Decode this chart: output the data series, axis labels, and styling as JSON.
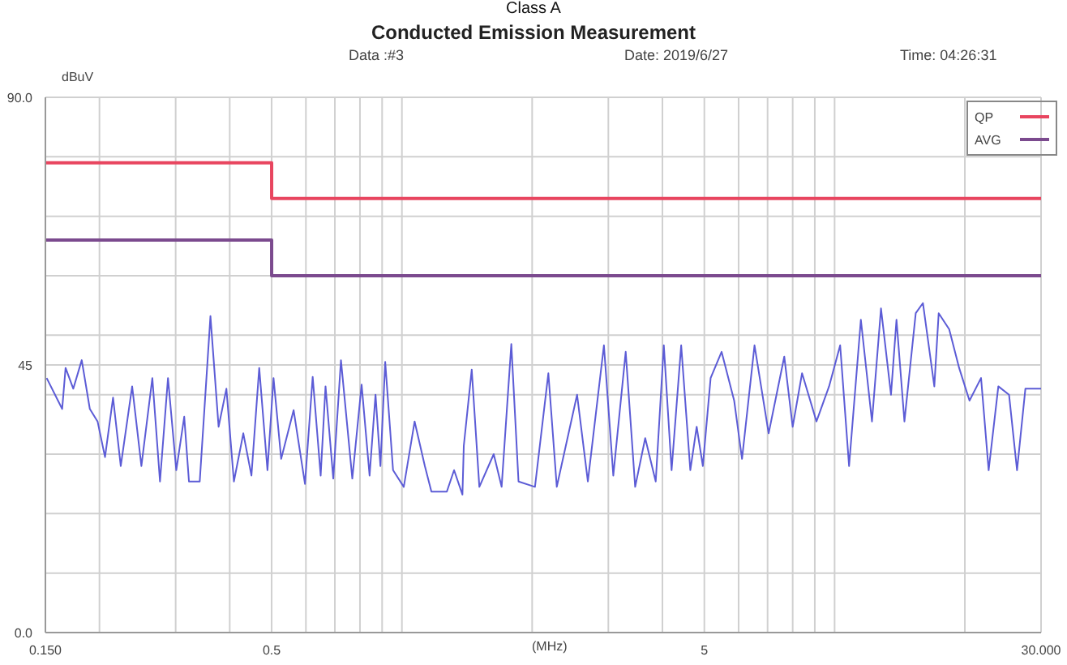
{
  "chart_data": {
    "type": "line",
    "title": "Conducted Emission Measurement",
    "subtitle": "Class A",
    "xlabel": "(MHz)",
    "ylabel": "dBuV",
    "annotations": [
      "Data :#3",
      "Date: 2019/6/27",
      "Time: 04:26:31"
    ],
    "log": "x",
    "grid": true,
    "legend": "top right",
    "marker": "none",
    "line_style": "solid",
    "xlim": [
      0.15,
      30
    ],
    "xticks": [
      {
        "value": 0.15,
        "label": "0.150"
      },
      {
        "value": 0.2,
        "label": null
      },
      {
        "value": 0.3,
        "label": null
      },
      {
        "value": 0.4,
        "label": null
      },
      0.5,
      {
        "value": 0.6,
        "label": null
      },
      {
        "value": 0.7,
        "label": null
      },
      {
        "value": 0.8,
        "label": null
      },
      {
        "value": 0.9,
        "label": null
      },
      {
        "value": 1,
        "label": null
      },
      {
        "value": 2,
        "label": null
      },
      {
        "value": 3,
        "label": null
      },
      {
        "value": 4,
        "label": null
      },
      5,
      {
        "value": 6,
        "label": null
      },
      {
        "value": 7,
        "label": null
      },
      {
        "value": 8,
        "label": null
      },
      {
        "value": 9,
        "label": null
      },
      {
        "value": 10,
        "label": null
      },
      {
        "value": 20,
        "label": null
      },
      {
        "value": 30,
        "label": "30.000"
      }
    ],
    "ylim": [
      0,
      90
    ],
    "yticks": [
      {
        "value": 0,
        "label": "0.0"
      },
      {
        "value": 10,
        "label": null
      },
      {
        "value": 20,
        "label": null
      },
      {
        "value": 30,
        "label": null
      },
      {
        "value": 40,
        "label": null
      },
      45,
      {
        "value": 50,
        "label": null
      },
      {
        "value": 60,
        "label": null
      },
      {
        "value": 70,
        "label": null
      },
      {
        "value": 80,
        "label": null
      },
      {
        "value": 90,
        "label": "90.0"
      }
    ],
    "series": [
      {
        "name": "QP",
        "type": "step",
        "color": "#e8455f",
        "x": [
          0.15,
          0.5,
          30
        ],
        "values": [
          79,
          73,
          73
        ]
      },
      {
        "name": "AVG",
        "type": "step",
        "color": "#7b4a8e",
        "x": [
          0.15,
          0.5,
          30
        ],
        "values": [
          66,
          60,
          60
        ]
      },
      {
        "color": "#5c5cd6",
        "x": [
          0.151,
          0.164,
          0.167,
          0.174,
          0.182,
          0.19,
          0.198,
          0.206,
          0.215,
          0.224,
          0.238,
          0.25,
          0.265,
          0.276,
          0.288,
          0.301,
          0.314,
          0.322,
          0.341,
          0.361,
          0.377,
          0.393,
          0.409,
          0.43,
          0.449,
          0.468,
          0.489,
          0.505,
          0.526,
          0.562,
          0.597,
          0.622,
          0.649,
          0.666,
          0.694,
          0.723,
          0.768,
          0.807,
          0.842,
          0.869,
          0.892,
          0.915,
          0.954,
          1.01,
          1.07,
          1.13,
          1.17,
          1.27,
          1.32,
          1.38,
          1.39,
          1.45,
          1.51,
          1.63,
          1.7,
          1.79,
          1.86,
          2.03,
          2.18,
          2.28,
          2.54,
          2.69,
          2.93,
          3.08,
          3.29,
          3.46,
          3.65,
          3.86,
          4.03,
          4.2,
          4.42,
          4.64,
          4.8,
          4.96,
          5.17,
          5.48,
          5.86,
          6.11,
          6.53,
          7.04,
          7.65,
          8.0,
          8.41,
          9.08,
          9.71,
          10.3,
          10.8,
          11.5,
          12.2,
          12.8,
          13.5,
          13.9,
          14.5,
          15.4,
          16.0,
          17.0,
          17.4,
          18.4,
          19.4,
          20.5,
          21.8,
          22.7,
          23.9,
          25.3,
          26.4,
          27.6,
          30
        ],
        "values": [
          42.8,
          37.6,
          44.5,
          41,
          45.8,
          37.6,
          35.5,
          29.5,
          39.5,
          28,
          41.4,
          28,
          42.8,
          25.4,
          42.8,
          27.3,
          36.3,
          25.4,
          25.4,
          53.2,
          34.6,
          41,
          25.4,
          33.5,
          26.4,
          44.5,
          27.3,
          42.8,
          29.2,
          37.4,
          25,
          43,
          26.4,
          41.4,
          25.9,
          45.8,
          25.9,
          41.7,
          26.4,
          40,
          28,
          45.5,
          27.3,
          24.5,
          35.5,
          28,
          23.7,
          23.7,
          27.3,
          23.2,
          31.4,
          44.2,
          24.5,
          30,
          24.5,
          48.5,
          25.4,
          24.5,
          43.6,
          24.5,
          40,
          25.4,
          48.3,
          26.4,
          47.2,
          24.5,
          32.7,
          25.4,
          48.3,
          27.3,
          48.3,
          27.3,
          34.6,
          28,
          42.8,
          47.2,
          39,
          29.2,
          48.3,
          33.5,
          46.4,
          34.6,
          43.6,
          35.5,
          41.4,
          48.3,
          28,
          52.6,
          35.5,
          54.5,
          40,
          52.6,
          35.5,
          53.7,
          55.4,
          41.4,
          53.7,
          51,
          44.5,
          39,
          42.8,
          27.3,
          41.4,
          40,
          27.3,
          41,
          41
        ]
      }
    ]
  }
}
